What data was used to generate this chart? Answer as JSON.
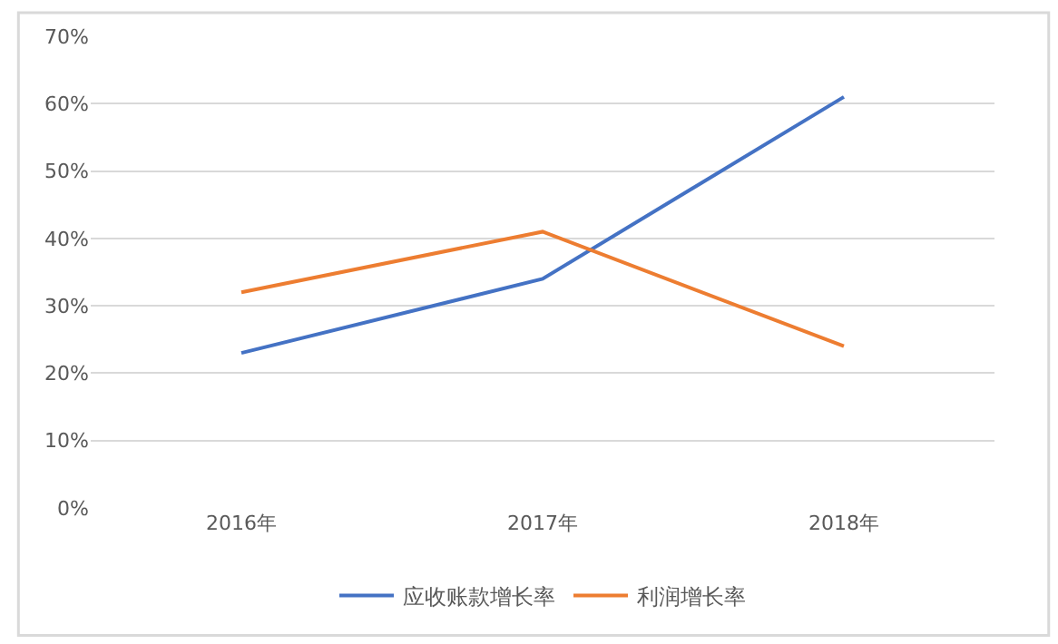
{
  "chart_data": {
    "type": "line",
    "categories": [
      "2016年",
      "2017年",
      "2018年"
    ],
    "series": [
      {
        "name": "应收账款增长率",
        "color": "#4472c4",
        "values": [
          23,
          34,
          61
        ]
      },
      {
        "name": "利润增长率",
        "color": "#ed7d31",
        "values": [
          32,
          41,
          24
        ]
      }
    ],
    "ylim": [
      0,
      70
    ],
    "yticks": [
      {
        "value": 0,
        "label": "0%"
      },
      {
        "value": 10,
        "label": "10%"
      },
      {
        "value": 20,
        "label": "20%"
      },
      {
        "value": 30,
        "label": "30%"
      },
      {
        "value": 40,
        "label": "40%"
      },
      {
        "value": 50,
        "label": "50%"
      },
      {
        "value": 60,
        "label": "60%"
      },
      {
        "value": 70,
        "label": "70%"
      }
    ],
    "grid": "y",
    "legend": "bottom",
    "marker": "none",
    "line_style": "solid"
  }
}
